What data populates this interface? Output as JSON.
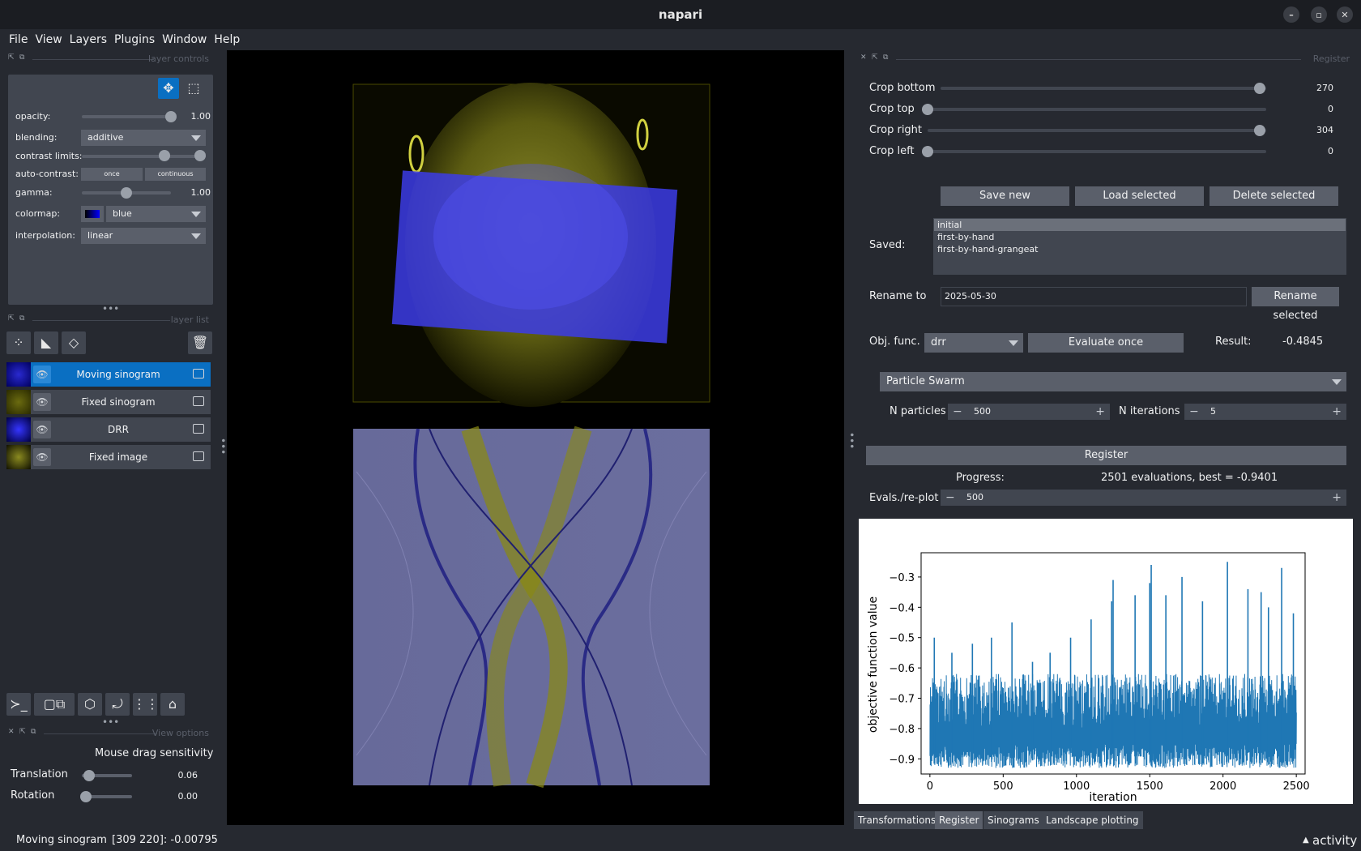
{
  "window": {
    "title": "napari"
  },
  "menu": [
    "File",
    "View",
    "Layers",
    "Plugins",
    "Window",
    "Help"
  ],
  "layer_controls": {
    "header": "layer controls",
    "opacity_label": "opacity:",
    "opacity_value": "1.00",
    "opacity_fraction": 1.0,
    "blending_label": "blending:",
    "blending_value": "additive",
    "contrast_label": "contrast limits:",
    "autocontrast_label": "auto-contrast:",
    "once_label": "once",
    "continuous_label": "continuous",
    "gamma_label": "gamma:",
    "gamma_value": "1.00",
    "gamma_fraction": 0.5,
    "colormap_label": "colormap:",
    "colormap_value": "blue",
    "interpolation_label": "interpolation:",
    "interpolation_value": "linear"
  },
  "layer_list": {
    "header": "layer list",
    "layers": [
      {
        "name": "Moving sinogram",
        "selected": true
      },
      {
        "name": "Fixed sinogram",
        "selected": false
      },
      {
        "name": "DRR",
        "selected": false
      },
      {
        "name": "Fixed image",
        "selected": false
      }
    ]
  },
  "view_options": {
    "header": "View options",
    "title": "Mouse drag sensitivity",
    "translation_label": "Translation",
    "translation_value": "0.06",
    "rotation_label": "Rotation",
    "rotation_value": "0.00"
  },
  "register": {
    "header": "Register",
    "crop": [
      {
        "label": "Crop bottom",
        "value": "270",
        "fraction": 1.0
      },
      {
        "label": "Crop top",
        "value": "0",
        "fraction": 0.0
      },
      {
        "label": "Crop right",
        "value": "304",
        "fraction": 1.0
      },
      {
        "label": "Crop left",
        "value": "0",
        "fraction": 0.0
      }
    ],
    "save_new": "Save new",
    "load_selected": "Load selected",
    "delete_selected": "Delete selected",
    "saved_label": "Saved:",
    "saved_items": [
      "initial",
      "first-by-hand",
      "first-by-hand-grangeat"
    ],
    "rename_label": "Rename to",
    "rename_value": "2025-05-30",
    "rename_button": "Rename selected",
    "objfunc_label": "Obj. func.",
    "objfunc_value": "drr",
    "evaluate_button": "Evaluate once",
    "result_label": "Result:",
    "result_value": "-0.4845",
    "optimizer": "Particle Swarm",
    "n_particles_label": "N particles",
    "n_particles_value": "500",
    "n_iterations_label": "N iterations",
    "n_iterations_value": "5",
    "register_button": "Register",
    "progress_label": "Progress:",
    "progress_value": "2501 evaluations, best = -0.9401",
    "evals_label": "Evals./re-plot",
    "evals_value": "500"
  },
  "tabs": [
    "Transformations",
    "Register",
    "Sinograms",
    "Landscape plotting"
  ],
  "status": {
    "layer": "Moving sinogram",
    "coords": "[309 220]: -0.00795",
    "activity": "activity"
  },
  "chart_data": {
    "type": "line",
    "xlabel": "iteration",
    "ylabel": "objective function value",
    "xlim": [
      -60,
      2560
    ],
    "ylim": [
      -0.95,
      -0.22
    ],
    "xticks": [
      "0",
      "500",
      "1000",
      "1500",
      "2000",
      "2500"
    ],
    "yticks": [
      "−0.3",
      "−0.4",
      "−0.5",
      "−0.6",
      "−0.7",
      "−0.8",
      "−0.9"
    ],
    "color": "#1f77b4",
    "band": {
      "x_start": 0,
      "x_end": 2500,
      "lower": -0.93,
      "upper": -0.62
    },
    "spikes": [
      [
        30,
        -0.5
      ],
      [
        150,
        -0.55
      ],
      [
        290,
        -0.52
      ],
      [
        420,
        -0.5
      ],
      [
        560,
        -0.45
      ],
      [
        700,
        -0.58
      ],
      [
        820,
        -0.55
      ],
      [
        960,
        -0.5
      ],
      [
        1100,
        -0.44
      ],
      [
        1240,
        -0.38
      ],
      [
        1250,
        -0.31
      ],
      [
        1400,
        -0.36
      ],
      [
        1500,
        -0.32
      ],
      [
        1510,
        -0.26
      ],
      [
        1610,
        -0.36
      ],
      [
        1720,
        -0.3
      ],
      [
        1860,
        -0.38
      ],
      [
        2030,
        -0.25
      ],
      [
        2170,
        -0.34
      ],
      [
        2260,
        -0.35
      ],
      [
        2310,
        -0.4
      ],
      [
        2400,
        -0.27
      ],
      [
        2480,
        -0.42
      ]
    ]
  }
}
